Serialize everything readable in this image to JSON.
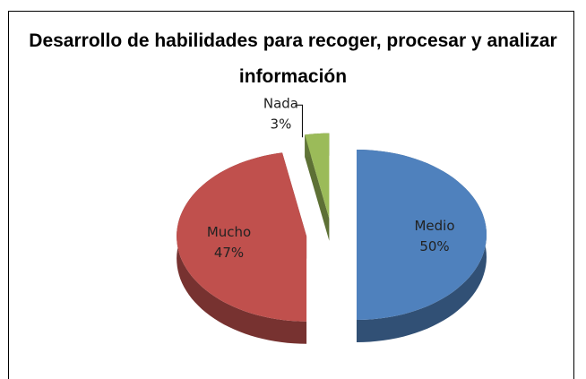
{
  "chart_data": {
    "type": "pie3d",
    "title": "Desarrollo de habilidades para recoger, procesar y analizar información",
    "categories": [
      "Medio",
      "Mucho",
      "Nada"
    ],
    "values": [
      50,
      47,
      3
    ],
    "value_labels": [
      "50%",
      "47%",
      "3%"
    ],
    "colors": [
      "#4f81bd",
      "#c0504d",
      "#9bbb59"
    ]
  }
}
